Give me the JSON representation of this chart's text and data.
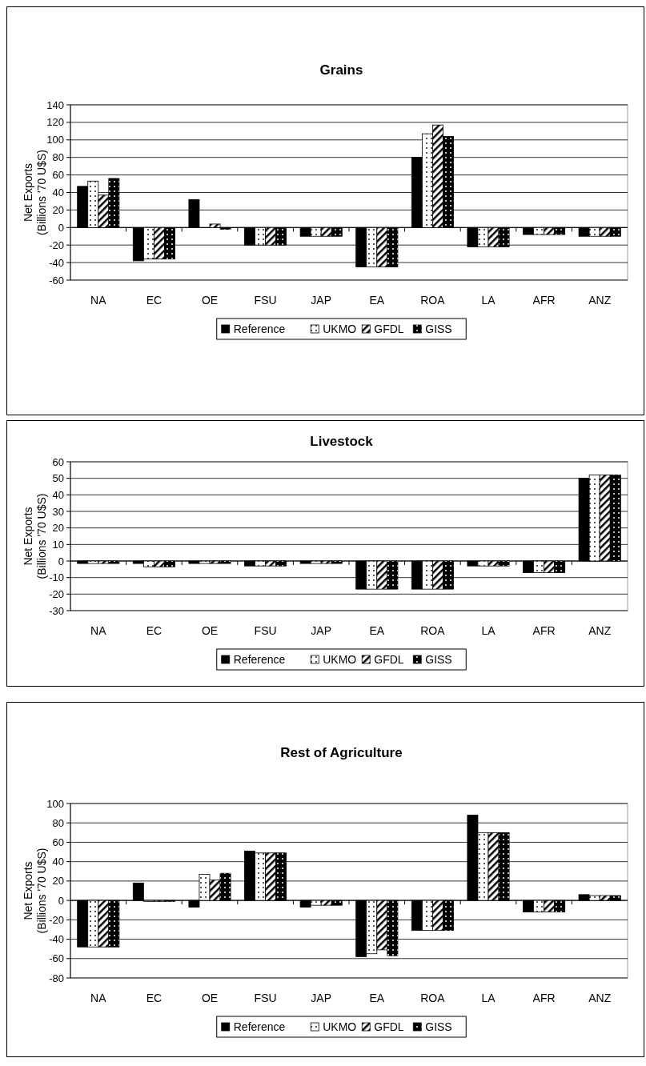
{
  "chart_data": [
    {
      "type": "bar",
      "title": "Grains",
      "ylabel": "Net Exports\n(Billions '70 U$S)",
      "categories": [
        "NA",
        "EC",
        "OE",
        "FSU",
        "JAP",
        "EA",
        "ROA",
        "LA",
        "AFR",
        "ANZ"
      ],
      "series": [
        {
          "name": "Reference",
          "color": "#000000",
          "values": [
            47,
            -38,
            32,
            -20,
            -10,
            -45,
            80,
            -22,
            -8,
            -10
          ]
        },
        {
          "name": "UKMO",
          "color": "#ffffff",
          "values": [
            53,
            -36,
            0,
            -20,
            -10,
            -45,
            107,
            -22,
            -8,
            -10
          ]
        },
        {
          "name": "GFDL",
          "color": "#ffffff",
          "values": [
            37,
            -36,
            4,
            -20,
            -10,
            -45,
            117,
            -22,
            -8,
            -10
          ]
        },
        {
          "name": "GISS",
          "color": "#000000",
          "values": [
            56,
            -36,
            -2,
            -20,
            -10,
            -45,
            104,
            -22,
            -8,
            -10
          ]
        }
      ],
      "ylim": [
        -60,
        140
      ],
      "yticks": [
        -60,
        -40,
        -20,
        0,
        20,
        40,
        60,
        80,
        100,
        120,
        140
      ],
      "grid": "y",
      "legend": "bottom"
    },
    {
      "type": "bar",
      "title": "Livestock",
      "ylabel": "Net Exports\n(Billions '70 U$S)",
      "categories": [
        "NA",
        "EC",
        "OE",
        "FSU",
        "JAP",
        "EA",
        "ROA",
        "LA",
        "AFR",
        "ANZ"
      ],
      "series": [
        {
          "name": "Reference",
          "color": "#000000",
          "values": [
            -1.5,
            -1.5,
            -1.5,
            -3,
            -1.5,
            -17,
            -17,
            -3,
            -7,
            50
          ]
        },
        {
          "name": "UKMO",
          "color": "#ffffff",
          "values": [
            -1.5,
            -3.5,
            -1.5,
            -3,
            -1.5,
            -17,
            -17,
            -3,
            -7,
            52
          ]
        },
        {
          "name": "GFDL",
          "color": "#ffffff",
          "values": [
            -1.5,
            -3.5,
            -1.5,
            -3,
            -1.5,
            -17,
            -17,
            -3,
            -7,
            52
          ]
        },
        {
          "name": "GISS",
          "color": "#000000",
          "values": [
            -1.5,
            -3.5,
            -1.5,
            -3,
            -1.5,
            -17,
            -17,
            -3,
            -7,
            52
          ]
        }
      ],
      "ylim": [
        -30,
        60
      ],
      "yticks": [
        -30,
        -20,
        -10,
        0,
        10,
        20,
        30,
        40,
        50,
        60
      ],
      "grid": "y",
      "legend": "bottom"
    },
    {
      "type": "bar",
      "title": "Rest of Agriculture",
      "ylabel": "Net Exports\n(Billions '70 U$S)",
      "categories": [
        "NA",
        "EC",
        "OE",
        "FSU",
        "JAP",
        "EA",
        "ROA",
        "LA",
        "AFR",
        "ANZ"
      ],
      "series": [
        {
          "name": "Reference",
          "color": "#000000",
          "values": [
            -48,
            18,
            -7,
            51,
            -7,
            -58,
            -31,
            88,
            -12,
            6
          ]
        },
        {
          "name": "UKMO",
          "color": "#ffffff",
          "values": [
            -48,
            -1,
            27,
            49,
            -5,
            -55,
            -31,
            70,
            -12,
            5
          ]
        },
        {
          "name": "GFDL",
          "color": "#ffffff",
          "values": [
            -48,
            -1,
            21,
            49,
            -5,
            -51,
            -31,
            70,
            -12,
            5
          ]
        },
        {
          "name": "GISS",
          "color": "#000000",
          "values": [
            -48,
            -1,
            28,
            49,
            -5,
            -57,
            -31,
            70,
            -12,
            5
          ]
        }
      ],
      "ylim": [
        -80,
        100
      ],
      "yticks": [
        -80,
        -60,
        -40,
        -20,
        0,
        20,
        40,
        60,
        80,
        100
      ],
      "grid": "y",
      "legend": "bottom"
    }
  ]
}
